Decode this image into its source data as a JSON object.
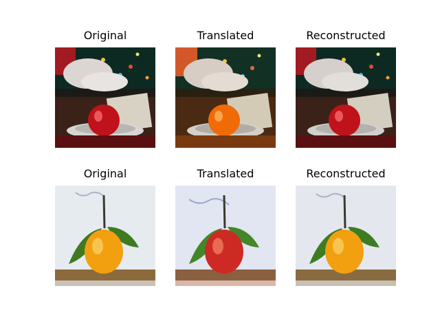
{
  "grid": {
    "rows": [
      {
        "titles": [
          "Original",
          "Translated",
          "Reconstructed"
        ],
        "subject": "apple on a plate in front of a decorated tree, with a white bird and a handwritten card",
        "fruit_colors": [
          "#c0121a",
          "#f06a08",
          "#c0121a"
        ]
      },
      {
        "titles": [
          "Original",
          "Translated",
          "Reconstructed"
        ],
        "subject": "orange with green leaves and stem on a wooden surface",
        "fruit_colors": [
          "#f2a010",
          "#cc2a22",
          "#f2a010"
        ]
      }
    ]
  }
}
